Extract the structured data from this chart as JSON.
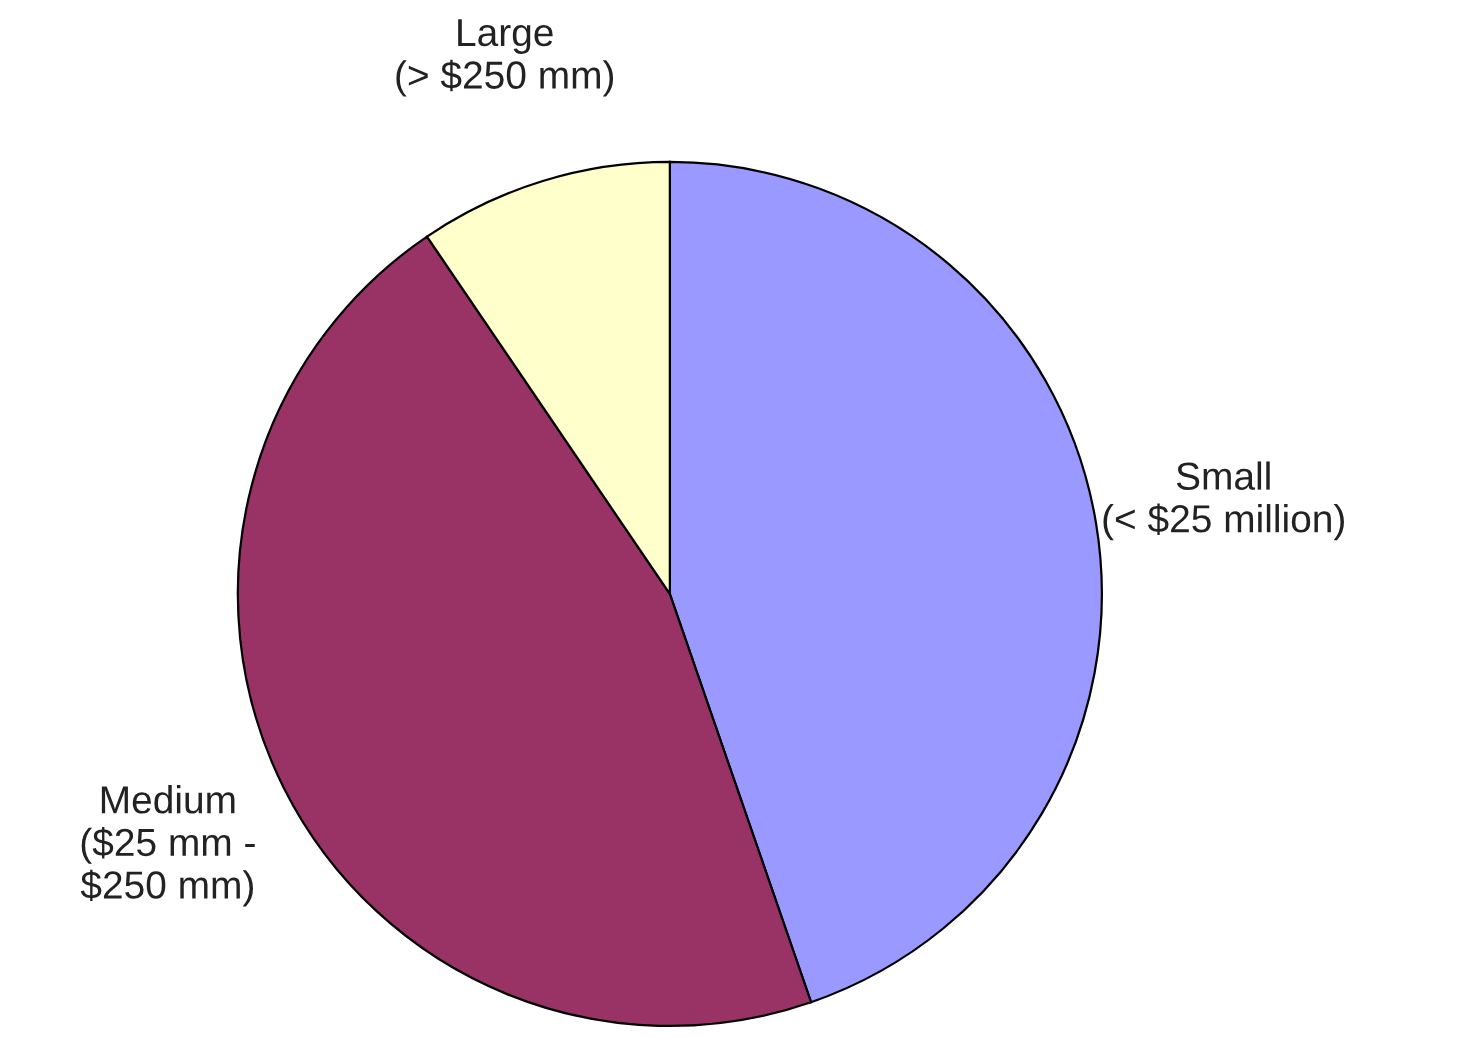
{
  "chart_data": {
    "type": "pie",
    "categories": [
      "Small\n(< $25 million)",
      "Medium\n($25 mm -\n$250 mm)",
      "Large\n(> $250 mm)"
    ],
    "values": [
      44.7,
      45.8,
      9.5
    ],
    "colors": [
      "#9999ff",
      "#993366",
      "#ffffcc"
    ]
  }
}
